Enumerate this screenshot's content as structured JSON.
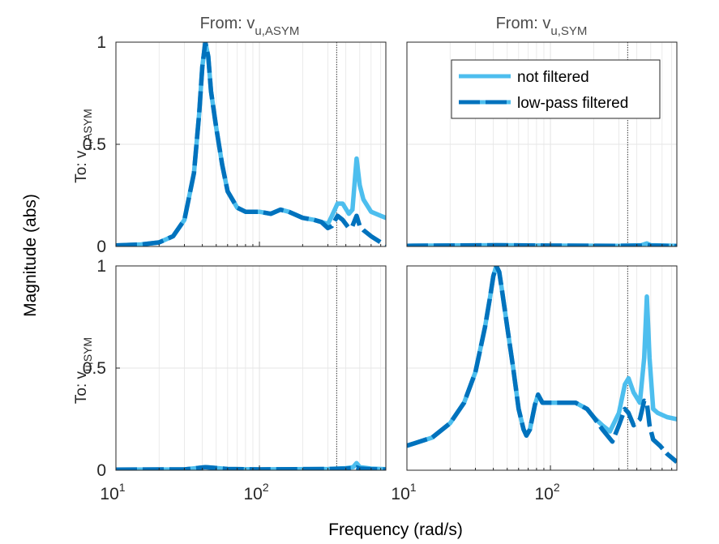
{
  "figure": {
    "ylabel": "Magnitude (abs)",
    "xlabel": "Frequency  (rad/s)"
  },
  "columns": [
    {
      "title_main": "From: v",
      "title_sub": "u,ASYM"
    },
    {
      "title_main": "From: v",
      "title_sub": "u,SYM"
    }
  ],
  "rows": [
    {
      "title_main": "To: v",
      "title_sub": "u,ASYM"
    },
    {
      "title_main": "To: v",
      "title_sub": "u,SYM"
    }
  ],
  "y_ticks": [
    "0",
    "0.5",
    "1"
  ],
  "x_ticks": [
    {
      "value": 10,
      "base": "10",
      "exp": "1"
    },
    {
      "value": 100,
      "base": "10",
      "exp": "2"
    }
  ],
  "legend": {
    "position": "top-right of upper-right panel",
    "entries": [
      "not filtered",
      "low-pass filtered"
    ]
  },
  "colors": {
    "not_filtered": "#4dbeee",
    "low_pass_filtered": "#0072bd",
    "grid": "#e6e6e6",
    "axes": "#262626",
    "cursor_line": "#000000"
  },
  "chart_data": [
    {
      "type": "line",
      "panel": "From u,ASYM to u,ASYM",
      "xscale": "log",
      "xlim": [
        10,
        760
      ],
      "ylim": [
        0,
        1
      ],
      "grid": true,
      "vline_x": 345,
      "series": [
        {
          "name": "not filtered",
          "points": [
            [
              10,
              0.005
            ],
            [
              15,
              0.01
            ],
            [
              20,
              0.02
            ],
            [
              25,
              0.05
            ],
            [
              30,
              0.13
            ],
            [
              35,
              0.36
            ],
            [
              38,
              0.65
            ],
            [
              40,
              0.88
            ],
            [
              42,
              1.0
            ],
            [
              44,
              0.93
            ],
            [
              46,
              0.76
            ],
            [
              50,
              0.58
            ],
            [
              55,
              0.4
            ],
            [
              60,
              0.27
            ],
            [
              70,
              0.19
            ],
            [
              80,
              0.17
            ],
            [
              100,
              0.17
            ],
            [
              120,
              0.16
            ],
            [
              140,
              0.18
            ],
            [
              160,
              0.17
            ],
            [
              200,
              0.14
            ],
            [
              240,
              0.13
            ],
            [
              270,
              0.12
            ],
            [
              300,
              0.11
            ],
            [
              320,
              0.15
            ],
            [
              350,
              0.21
            ],
            [
              380,
              0.21
            ],
            [
              420,
              0.16
            ],
            [
              445,
              0.18
            ],
            [
              475,
              0.43
            ],
            [
              500,
              0.3
            ],
            [
              530,
              0.23
            ],
            [
              600,
              0.17
            ],
            [
              700,
              0.15
            ],
            [
              760,
              0.14
            ]
          ]
        },
        {
          "name": "low-pass filtered",
          "points": [
            [
              10,
              0.005
            ],
            [
              15,
              0.01
            ],
            [
              20,
              0.02
            ],
            [
              25,
              0.05
            ],
            [
              30,
              0.13
            ],
            [
              35,
              0.36
            ],
            [
              38,
              0.65
            ],
            [
              40,
              0.88
            ],
            [
              42,
              1.0
            ],
            [
              44,
              0.93
            ],
            [
              46,
              0.76
            ],
            [
              50,
              0.58
            ],
            [
              55,
              0.4
            ],
            [
              60,
              0.27
            ],
            [
              70,
              0.19
            ],
            [
              80,
              0.17
            ],
            [
              100,
              0.17
            ],
            [
              120,
              0.16
            ],
            [
              140,
              0.18
            ],
            [
              160,
              0.17
            ],
            [
              200,
              0.14
            ],
            [
              240,
              0.13
            ],
            [
              270,
              0.12
            ],
            [
              300,
              0.09
            ],
            [
              320,
              0.1
            ],
            [
              350,
              0.15
            ],
            [
              380,
              0.13
            ],
            [
              420,
              0.09
            ],
            [
              445,
              0.1
            ],
            [
              475,
              0.15
            ],
            [
              500,
              0.1
            ],
            [
              530,
              0.08
            ],
            [
              600,
              0.05
            ],
            [
              700,
              0.02
            ],
            [
              760,
              0.01
            ]
          ]
        }
      ]
    },
    {
      "type": "line",
      "panel": "From u,SYM to u,ASYM",
      "xscale": "log",
      "xlim": [
        10,
        760
      ],
      "ylim": [
        0,
        1
      ],
      "grid": true,
      "vline_x": 345,
      "series": [
        {
          "name": "not filtered",
          "points": [
            [
              10,
              0.003
            ],
            [
              42,
              0.006
            ],
            [
              100,
              0.004
            ],
            [
              300,
              0.003
            ],
            [
              430,
              0.006
            ],
            [
              470,
              0.015
            ],
            [
              500,
              0.006
            ],
            [
              760,
              0.003
            ]
          ]
        },
        {
          "name": "low-pass filtered",
          "points": [
            [
              10,
              0.003
            ],
            [
              42,
              0.006
            ],
            [
              100,
              0.004
            ],
            [
              300,
              0.003
            ],
            [
              430,
              0.004
            ],
            [
              470,
              0.006
            ],
            [
              500,
              0.004
            ],
            [
              760,
              0.002
            ]
          ]
        }
      ]
    },
    {
      "type": "line",
      "panel": "From u,ASYM to u,SYM",
      "xscale": "log",
      "xlim": [
        10,
        760
      ],
      "ylim": [
        0,
        1
      ],
      "grid": true,
      "vline_x": 345,
      "series": [
        {
          "name": "not filtered",
          "points": [
            [
              10,
              0.003
            ],
            [
              30,
              0.004
            ],
            [
              42,
              0.015
            ],
            [
              60,
              0.006
            ],
            [
              100,
              0.004
            ],
            [
              300,
              0.006
            ],
            [
              400,
              0.01
            ],
            [
              450,
              0.015
            ],
            [
              475,
              0.035
            ],
            [
              500,
              0.015
            ],
            [
              600,
              0.008
            ],
            [
              760,
              0.005
            ]
          ]
        },
        {
          "name": "low-pass filtered",
          "points": [
            [
              10,
              0.003
            ],
            [
              30,
              0.004
            ],
            [
              42,
              0.015
            ],
            [
              60,
              0.006
            ],
            [
              100,
              0.004
            ],
            [
              300,
              0.006
            ],
            [
              400,
              0.008
            ],
            [
              450,
              0.01
            ],
            [
              475,
              0.014
            ],
            [
              500,
              0.008
            ],
            [
              600,
              0.005
            ],
            [
              760,
              0.003
            ]
          ]
        }
      ]
    },
    {
      "type": "line",
      "panel": "From u,SYM to u,SYM",
      "xscale": "log",
      "xlim": [
        10,
        760
      ],
      "ylim": [
        0,
        1
      ],
      "grid": true,
      "vline_x": 345,
      "series": [
        {
          "name": "not filtered",
          "points": [
            [
              10,
              0.12
            ],
            [
              15,
              0.16
            ],
            [
              20,
              0.23
            ],
            [
              25,
              0.33
            ],
            [
              30,
              0.48
            ],
            [
              35,
              0.7
            ],
            [
              38,
              0.85
            ],
            [
              40,
              0.95
            ],
            [
              42,
              1.0
            ],
            [
              44,
              0.97
            ],
            [
              46,
              0.88
            ],
            [
              50,
              0.7
            ],
            [
              55,
              0.5
            ],
            [
              60,
              0.3
            ],
            [
              65,
              0.2
            ],
            [
              68,
              0.17
            ],
            [
              72,
              0.2
            ],
            [
              78,
              0.32
            ],
            [
              82,
              0.37
            ],
            [
              88,
              0.33
            ],
            [
              100,
              0.33
            ],
            [
              120,
              0.33
            ],
            [
              150,
              0.33
            ],
            [
              180,
              0.3
            ],
            [
              200,
              0.26
            ],
            [
              230,
              0.22
            ],
            [
              260,
              0.19
            ],
            [
              300,
              0.28
            ],
            [
              330,
              0.42
            ],
            [
              350,
              0.45
            ],
            [
              380,
              0.38
            ],
            [
              420,
              0.33
            ],
            [
              450,
              0.55
            ],
            [
              470,
              0.85
            ],
            [
              490,
              0.55
            ],
            [
              520,
              0.3
            ],
            [
              560,
              0.28
            ],
            [
              650,
              0.26
            ],
            [
              760,
              0.25
            ]
          ]
        },
        {
          "name": "low-pass filtered",
          "points": [
            [
              10,
              0.12
            ],
            [
              15,
              0.16
            ],
            [
              20,
              0.23
            ],
            [
              25,
              0.33
            ],
            [
              30,
              0.48
            ],
            [
              35,
              0.7
            ],
            [
              38,
              0.85
            ],
            [
              40,
              0.95
            ],
            [
              42,
              1.0
            ],
            [
              44,
              0.97
            ],
            [
              46,
              0.88
            ],
            [
              50,
              0.7
            ],
            [
              55,
              0.5
            ],
            [
              60,
              0.3
            ],
            [
              65,
              0.2
            ],
            [
              68,
              0.17
            ],
            [
              72,
              0.2
            ],
            [
              78,
              0.32
            ],
            [
              82,
              0.37
            ],
            [
              88,
              0.33
            ],
            [
              100,
              0.33
            ],
            [
              120,
              0.33
            ],
            [
              150,
              0.33
            ],
            [
              180,
              0.3
            ],
            [
              200,
              0.26
            ],
            [
              230,
              0.2
            ],
            [
              270,
              0.14
            ],
            [
              300,
              0.22
            ],
            [
              330,
              0.3
            ],
            [
              350,
              0.28
            ],
            [
              380,
              0.22
            ],
            [
              420,
              0.25
            ],
            [
              450,
              0.34
            ],
            [
              470,
              0.33
            ],
            [
              490,
              0.22
            ],
            [
              520,
              0.15
            ],
            [
              580,
              0.12
            ],
            [
              650,
              0.08
            ],
            [
              760,
              0.04
            ]
          ]
        }
      ]
    }
  ]
}
